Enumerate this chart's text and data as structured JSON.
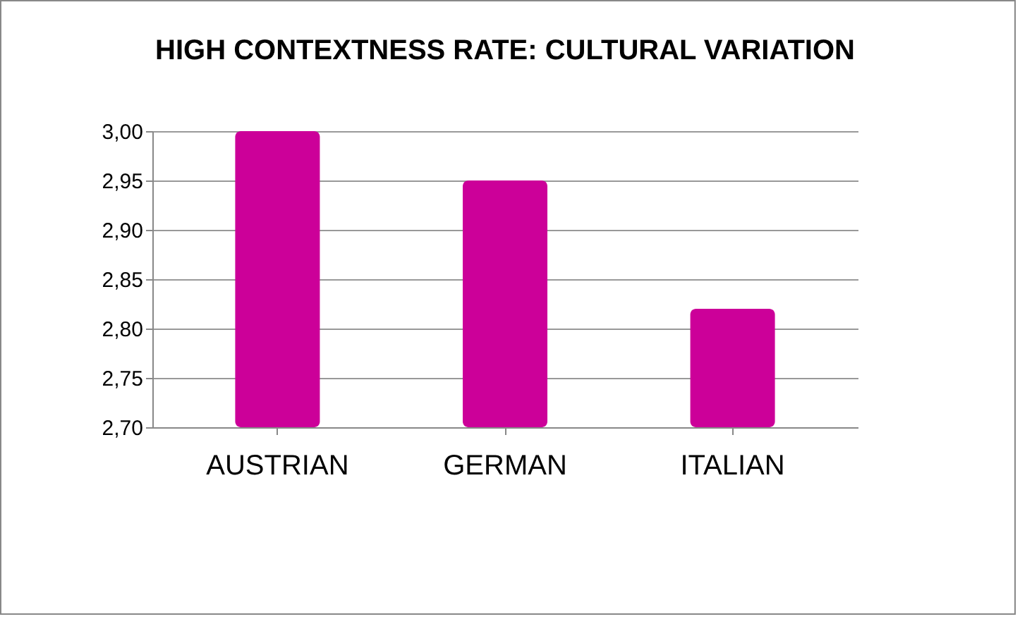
{
  "chart_data": {
    "type": "bar",
    "title": "HIGH CONTEXTNESS RATE: CULTURAL VARIATION",
    "categories": [
      "AUSTRIAN",
      "GERMAN",
      "ITALIAN"
    ],
    "values": [
      3.0,
      2.95,
      2.82
    ],
    "color": "#cc0099",
    "ylim": [
      2.7,
      3.0
    ],
    "yticks": [
      {
        "value": 2.7,
        "label": "2,70"
      },
      {
        "value": 2.75,
        "label": "2,75"
      },
      {
        "value": 2.8,
        "label": "2,80"
      },
      {
        "value": 2.85,
        "label": "2,85"
      },
      {
        "value": 2.9,
        "label": "2,90"
      },
      {
        "value": 2.95,
        "label": "2,95"
      },
      {
        "value": 3.0,
        "label": "3,00"
      }
    ],
    "grid": "y"
  }
}
